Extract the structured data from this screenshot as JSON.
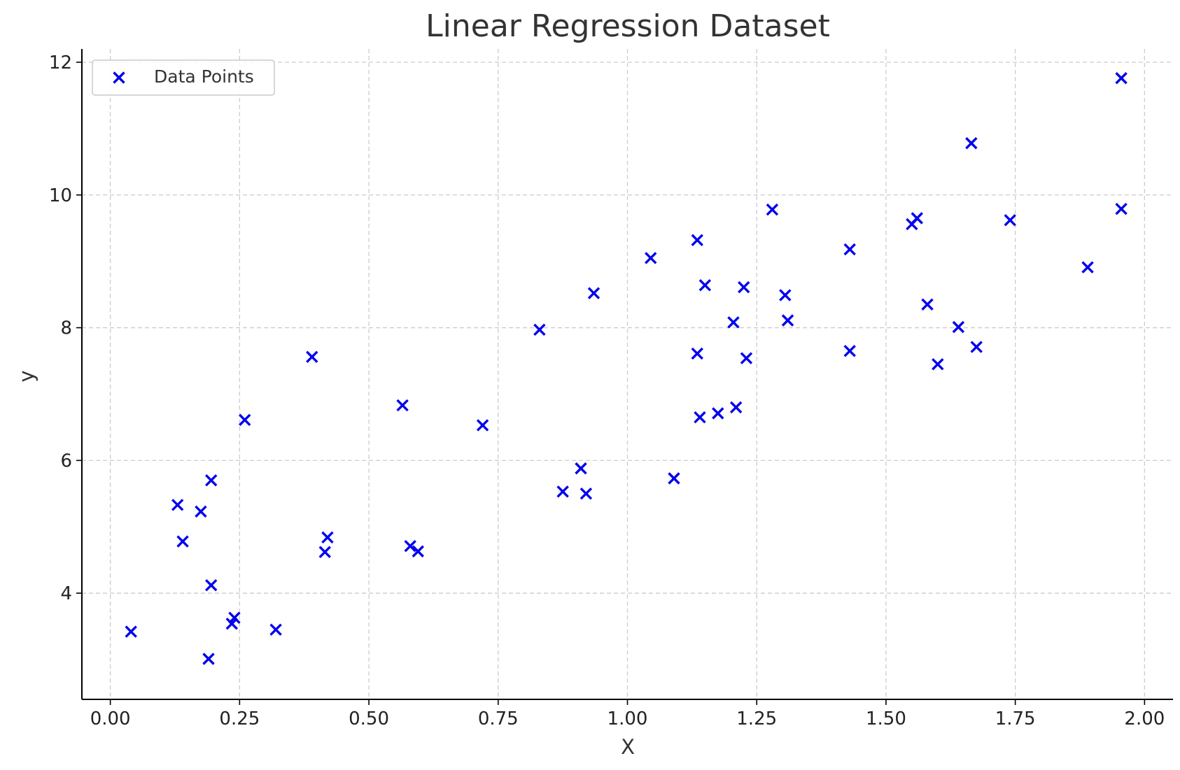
{
  "chart_data": {
    "type": "scatter",
    "title": "Linear Regression Dataset",
    "xlabel": "X",
    "ylabel": "y",
    "xlim": [
      -0.055,
      2.055
    ],
    "ylim": [
      2.4,
      12.2
    ],
    "xticks": [
      0.0,
      0.25,
      0.5,
      0.75,
      1.0,
      1.25,
      1.5,
      1.75,
      2.0
    ],
    "xtick_labels": [
      "0.00",
      "0.25",
      "0.50",
      "0.75",
      "1.00",
      "1.25",
      "1.50",
      "1.75",
      "2.00"
    ],
    "yticks": [
      4,
      6,
      8,
      10,
      12
    ],
    "ytick_labels": [
      "4",
      "6",
      "8",
      "10",
      "12"
    ],
    "grid": true,
    "legend": {
      "position": "top-left",
      "entries": [
        "Data Points"
      ]
    },
    "series": [
      {
        "name": "Data Points",
        "marker": "x",
        "color": "#0000ee",
        "x": [
          0.04,
          0.13,
          0.14,
          0.175,
          0.19,
          0.195,
          0.195,
          0.235,
          0.24,
          0.26,
          0.32,
          0.39,
          0.415,
          0.42,
          0.565,
          0.58,
          0.595,
          0.72,
          0.83,
          0.875,
          0.91,
          0.92,
          0.935,
          1.045,
          1.09,
          1.135,
          1.135,
          1.14,
          1.15,
          1.175,
          1.205,
          1.21,
          1.225,
          1.23,
          1.28,
          1.305,
          1.31,
          1.43,
          1.43,
          1.55,
          1.56,
          1.58,
          1.6,
          1.64,
          1.665,
          1.675,
          1.74,
          1.89,
          1.955,
          1.955
        ],
        "y": [
          3.42,
          5.33,
          4.78,
          5.23,
          3.01,
          4.12,
          5.7,
          3.54,
          3.63,
          6.61,
          3.45,
          7.56,
          4.62,
          4.84,
          6.83,
          4.71,
          4.63,
          6.53,
          7.97,
          5.53,
          5.88,
          5.5,
          8.52,
          9.05,
          5.73,
          9.32,
          7.61,
          6.65,
          8.64,
          6.71,
          8.08,
          6.8,
          8.61,
          7.54,
          9.78,
          8.49,
          8.11,
          9.18,
          7.65,
          9.56,
          9.65,
          8.35,
          7.45,
          8.01,
          10.78,
          7.71,
          9.62,
          8.91,
          9.79,
          11.76
        ]
      }
    ]
  }
}
